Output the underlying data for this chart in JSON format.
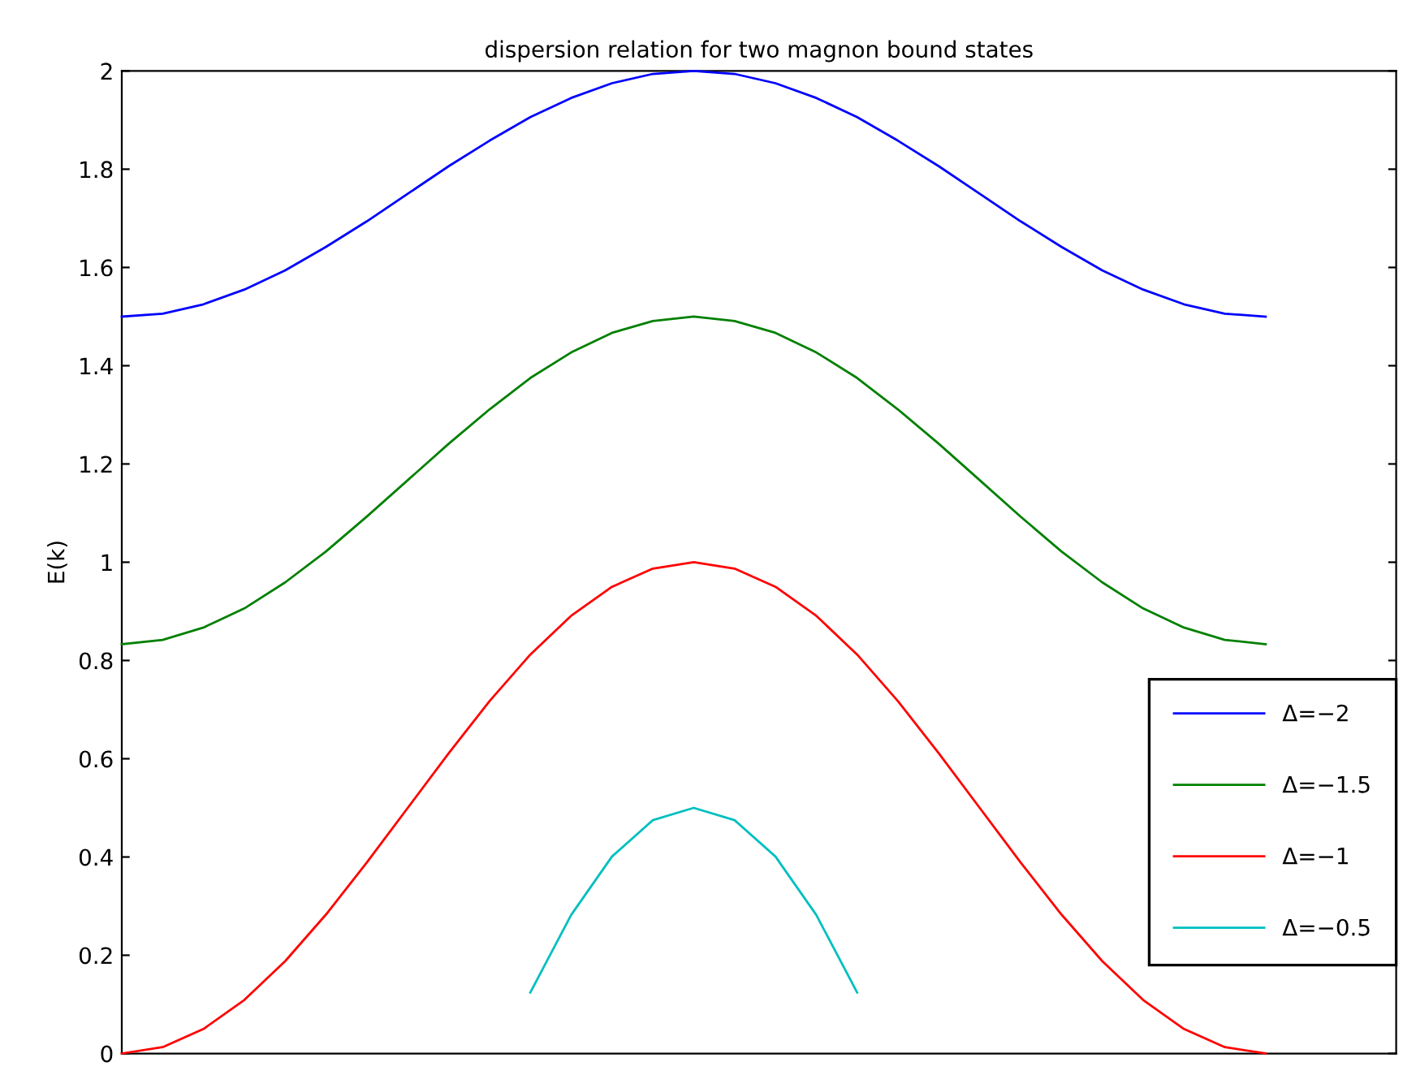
{
  "chart_data": {
    "type": "line",
    "title": "dispersion relation for two magnon bound states",
    "ylabel": "E(k)",
    "categories": [
      null,
      null,
      null,
      null,
      null,
      null,
      null,
      null,
      null,
      null,
      null,
      null,
      null,
      null,
      null,
      null,
      null,
      null,
      null,
      null,
      null,
      null,
      null,
      null,
      null,
      null,
      null,
      null,
      null
    ],
    "series": [
      {
        "name": "Δ=−2",
        "color": "#0000ff",
        "values": [
          1.5,
          1.506,
          1.525,
          1.555,
          1.594,
          1.642,
          1.694,
          1.75,
          1.806,
          1.858,
          1.906,
          1.945,
          1.975,
          1.994,
          2,
          1.994,
          1.975,
          1.945,
          1.906,
          1.858,
          1.806,
          1.75,
          1.694,
          1.642,
          1.594,
          1.555,
          1.525,
          1.506,
          1.5
        ]
      },
      {
        "name": "Δ=−1.5",
        "color": "#008000",
        "values": [
          0.833,
          0.842,
          0.867,
          0.906,
          0.959,
          1.022,
          1.093,
          1.167,
          1.241,
          1.311,
          1.375,
          1.427,
          1.467,
          1.491,
          1.5,
          1.491,
          1.467,
          1.427,
          1.375,
          1.311,
          1.241,
          1.167,
          1.093,
          1.022,
          0.959,
          0.906,
          0.867,
          0.842,
          0.833
        ]
      },
      {
        "name": "Δ=−1",
        "color": "#ff0000",
        "values": [
          0,
          0.013,
          0.05,
          0.109,
          0.188,
          0.283,
          0.389,
          0.5,
          0.611,
          0.717,
          0.812,
          0.891,
          0.95,
          0.987,
          1,
          0.987,
          0.95,
          0.891,
          0.812,
          0.717,
          0.611,
          0.5,
          0.389,
          0.283,
          0.188,
          0.109,
          0.05,
          0.013,
          0
        ]
      },
      {
        "name": "Δ=−0.5",
        "color": "#00bfbf",
        "values": [
          null,
          null,
          null,
          null,
          null,
          null,
          null,
          null,
          null,
          null,
          0.124,
          0.282,
          0.401,
          0.475,
          0.5,
          0.475,
          0.401,
          0.282,
          0.124,
          null,
          null,
          null,
          null,
          null,
          null,
          null,
          null,
          null,
          null
        ]
      }
    ],
    "ylim": [
      0,
      2
    ],
    "yticks": [
      0,
      0.2,
      0.4,
      0.6,
      0.8,
      1,
      1.2,
      1.4,
      1.6,
      1.8,
      2
    ],
    "legend": "bottom right",
    "tick_labels": "y"
  }
}
